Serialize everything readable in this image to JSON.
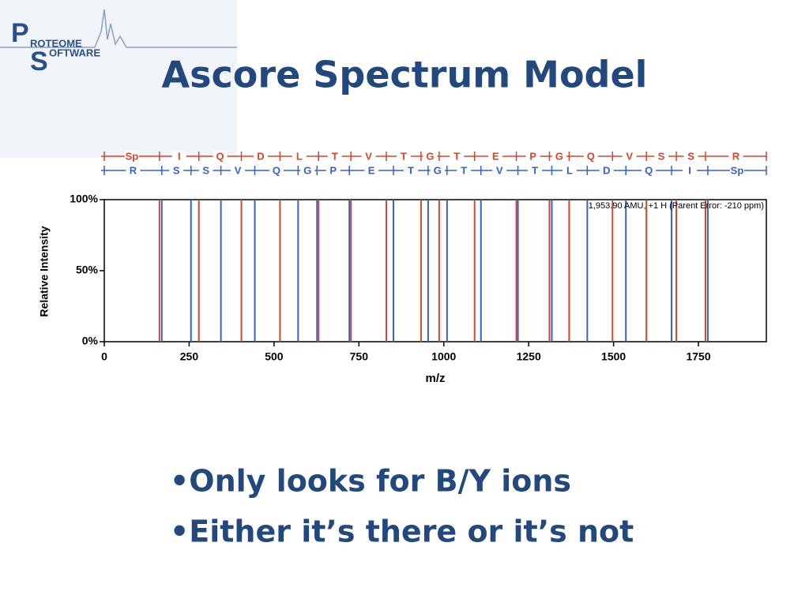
{
  "logo": {
    "letters": [
      "P",
      "ROTEOME",
      "S",
      "OFTWARE"
    ]
  },
  "slide_title": "Ascore Spectrum Model",
  "bullets": [
    "•Only looks for B/Y ions",
    "•Either it’s there or it’s not"
  ],
  "chart_data": {
    "type": "spectrum",
    "xlabel": "m/z",
    "ylabel": "Relative Intensity",
    "annotation": "1,953.90 AMU, +1 H (Parent Error: -210 ppm)",
    "xlim": [
      0,
      1950
    ],
    "xticks": [
      0,
      250,
      500,
      750,
      1000,
      1250,
      1500,
      1750
    ],
    "ylim": [
      0,
      100
    ],
    "yticks": [
      {
        "value": 0,
        "label": "0%"
      },
      {
        "value": 50,
        "label": "50%"
      },
      {
        "value": 100,
        "label": "100%"
      }
    ],
    "top_ladder": [
      "Sp",
      "I",
      "Q",
      "D",
      "L",
      "T",
      "V",
      "T",
      "G",
      "T",
      "E",
      "P",
      "G",
      "Q",
      "V",
      "S",
      "S",
      "R"
    ],
    "bottom_ladder": [
      "R",
      "S",
      "S",
      "V",
      "Q",
      "G",
      "P",
      "E",
      "T",
      "G",
      "T",
      "V",
      "T",
      "L",
      "D",
      "Q",
      "I",
      "Sp"
    ],
    "series": [
      {
        "color": "#d8432c",
        "x": [
          162.5,
          278.5,
          403.8,
          517.5,
          631.2,
          726.4,
          830.8,
          932.9,
          986.3,
          1090.7,
          1213.7,
          1311.2,
          1369.2,
          1496.9,
          1596.7,
          1684.9,
          1770.8
        ],
        "values": [
          100,
          100,
          100,
          100,
          100,
          100,
          100,
          100,
          100,
          100,
          100,
          100,
          100,
          100,
          100,
          100,
          100
        ]
      },
      {
        "color": "#3a5fc9",
        "x": [
          169.4,
          255.3,
          343.5,
          443.3,
          570.9,
          626.6,
          721.8,
          851.7,
          953.8,
          1009.5,
          1109.3,
          1218.4,
          1318.2,
          1422.6,
          1536.3,
          1670.9,
          1777.7
        ],
        "values": [
          100,
          100,
          100,
          100,
          100,
          100,
          100,
          100,
          100,
          100,
          100,
          100,
          100,
          100,
          100,
          100,
          100
        ]
      }
    ]
  }
}
